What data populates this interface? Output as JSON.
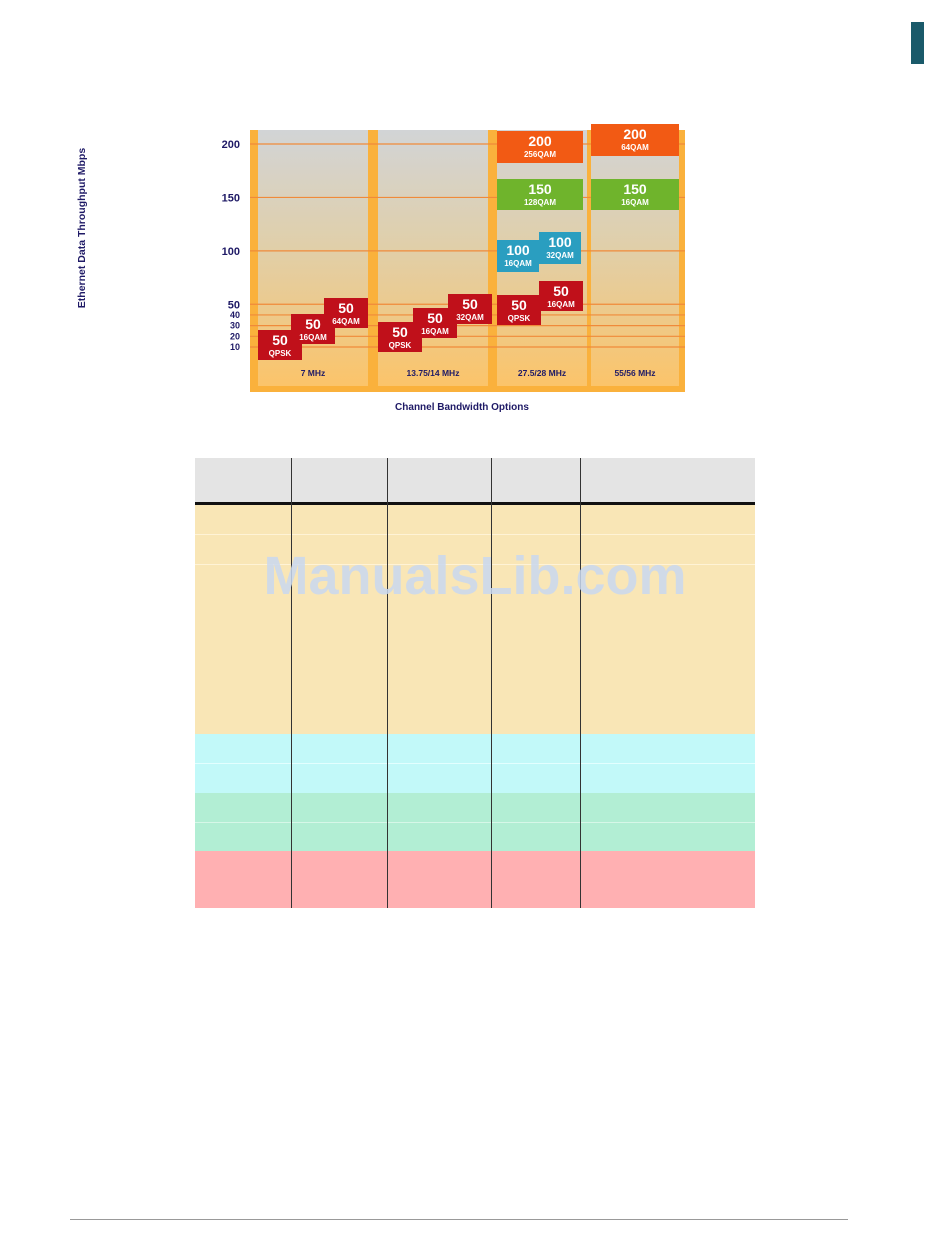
{
  "colors": {
    "accent_teal": "#1a5a6a",
    "red_badge": "#c0101a",
    "blue_badge": "#2a9ec0",
    "green_badge": "#6fb42c",
    "orange_badge": "#f25a14",
    "row_tan": "#f9e6b6",
    "row_cyan": "#c2f9f9",
    "row_green": "#b2eed4",
    "row_pink": "#ffb0b2"
  },
  "chart_data": {
    "type": "bar",
    "title": "",
    "xlabel": "Channel  Bandwidth Options",
    "ylabel": "Ethernet Data Throughput Mbps",
    "y_ticks": [
      10,
      20,
      30,
      40,
      50,
      100,
      150,
      200
    ],
    "categories": [
      "7 MHz",
      "13.75/14 MHz",
      "27.5/28 MHz",
      "55/56 MHz"
    ],
    "badges": [
      {
        "category": 0,
        "step": 0,
        "value": "50",
        "mod": "QPSK",
        "color": "red"
      },
      {
        "category": 0,
        "step": 1,
        "value": "50",
        "mod": "16QAM",
        "color": "red"
      },
      {
        "category": 0,
        "step": 2,
        "value": "50",
        "mod": "64QAM",
        "color": "red"
      },
      {
        "category": 1,
        "step": 0,
        "value": "50",
        "mod": "QPSK",
        "color": "red"
      },
      {
        "category": 1,
        "step": 1,
        "value": "50",
        "mod": "16QAM",
        "color": "red"
      },
      {
        "category": 1,
        "step": 2,
        "value": "50",
        "mod": "32QAM",
        "color": "red"
      },
      {
        "category": 2,
        "step": 0,
        "value": "50",
        "mod": "QPSK",
        "color": "red"
      },
      {
        "category": 2,
        "step": 1,
        "value": "50",
        "mod": "16QAM",
        "color": "red"
      },
      {
        "category": 2,
        "step": 0,
        "value": "100",
        "mod": "16QAM",
        "color": "blue"
      },
      {
        "category": 2,
        "step": 1,
        "value": "100",
        "mod": "32QAM",
        "color": "blue"
      },
      {
        "category": 2,
        "step": 0,
        "value": "150",
        "mod": "128QAM",
        "color": "green"
      },
      {
        "category": 2,
        "step": 0,
        "value": "200",
        "mod": "256QAM",
        "color": "orange"
      },
      {
        "category": 3,
        "step": 0,
        "value": "150",
        "mod": "16QAM",
        "color": "green"
      },
      {
        "category": 3,
        "step": 0,
        "value": "200",
        "mod": "64QAM",
        "color": "orange"
      }
    ]
  },
  "watermark": "ManualsLib.com"
}
